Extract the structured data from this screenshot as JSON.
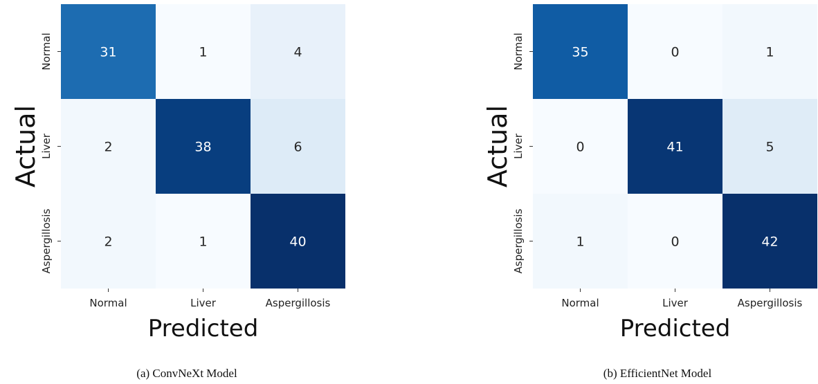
{
  "chart_data": [
    {
      "type": "heatmap",
      "caption": "(a) ConvNeXt Model",
      "xlabel": "Predicted",
      "ylabel": "Actual",
      "x_categories": [
        "Normal",
        "Liver",
        "Aspergillosis"
      ],
      "y_categories": [
        "Normal",
        "Liver",
        "Aspergillosis"
      ],
      "values": [
        [
          31,
          1,
          4
        ],
        [
          2,
          38,
          6
        ],
        [
          2,
          1,
          40
        ]
      ],
      "colormap": "Blues",
      "colorbar": false
    },
    {
      "type": "heatmap",
      "caption": "(b) EfficientNet Model",
      "xlabel": "Predicted",
      "ylabel": "Actual",
      "x_categories": [
        "Normal",
        "Liver",
        "Aspergillosis"
      ],
      "y_categories": [
        "Normal",
        "Liver",
        "Aspergillosis"
      ],
      "values": [
        [
          35,
          0,
          1
        ],
        [
          0,
          41,
          5
        ],
        [
          1,
          0,
          42
        ]
      ],
      "colormap": "Blues",
      "colorbar": false
    }
  ]
}
